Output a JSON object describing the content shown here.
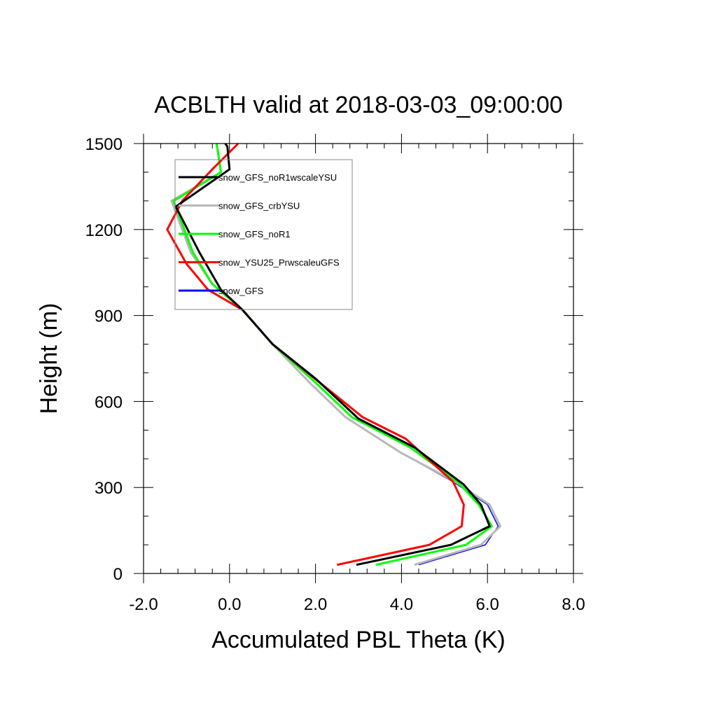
{
  "chart_data": {
    "type": "line",
    "title": "ACBLTH valid at 2018-03-03_09:00:00",
    "xlabel": "Accumulated PBL Theta (K)",
    "ylabel": "Height (m)",
    "xlim": [
      -2.0,
      8.0
    ],
    "ylim": [
      0,
      1500
    ],
    "x_ticks": [
      -2.0,
      0.0,
      2.0,
      4.0,
      6.0,
      8.0
    ],
    "x_tick_labels": [
      "-2.0",
      "0.0",
      "2.0",
      "4.0",
      "6.0",
      "8.0"
    ],
    "y_ticks": [
      0,
      300,
      600,
      900,
      1200,
      1500
    ],
    "y_tick_labels": [
      "0",
      "300",
      "600",
      "900",
      "1200",
      "1500"
    ],
    "legend_position": "top-left",
    "series": [
      {
        "name": "snow_GFS",
        "color": "#0000ff",
        "points": [
          [
            4.4,
            30
          ],
          [
            5.95,
            100
          ],
          [
            6.25,
            165
          ],
          [
            6.0,
            240
          ],
          [
            5.2,
            320
          ],
          [
            4.0,
            420
          ],
          [
            2.7,
            545
          ],
          [
            1.9,
            660
          ],
          [
            1.0,
            800
          ],
          [
            0.3,
            920
          ],
          [
            -0.4,
            1010
          ],
          [
            -0.9,
            1120
          ],
          [
            -1.3,
            1300
          ],
          [
            -0.2,
            1400
          ],
          [
            -0.3,
            1500
          ]
        ]
      },
      {
        "name": "snow_GFS_crbYSU",
        "color": "#b8b8b8",
        "points": [
          [
            4.3,
            30
          ],
          [
            5.85,
            100
          ],
          [
            6.3,
            165
          ],
          [
            6.05,
            240
          ],
          [
            5.25,
            320
          ],
          [
            4.0,
            420
          ],
          [
            2.7,
            545
          ],
          [
            1.9,
            660
          ],
          [
            1.0,
            800
          ],
          [
            0.3,
            920
          ],
          [
            -0.4,
            1010
          ],
          [
            -0.9,
            1120
          ],
          [
            -1.35,
            1300
          ],
          [
            -0.2,
            1400
          ],
          [
            -0.3,
            1500
          ]
        ]
      },
      {
        "name": "snow_GFS_noR1",
        "color": "#00ff00",
        "points": [
          [
            3.4,
            30
          ],
          [
            5.5,
            100
          ],
          [
            6.1,
            165
          ],
          [
            5.8,
            240
          ],
          [
            5.3,
            320
          ],
          [
            4.2,
            440
          ],
          [
            2.85,
            545
          ],
          [
            1.9,
            680
          ],
          [
            1.0,
            800
          ],
          [
            0.3,
            920
          ],
          [
            -0.4,
            1010
          ],
          [
            -0.85,
            1120
          ],
          [
            -1.3,
            1300
          ],
          [
            -0.2,
            1400
          ],
          [
            -0.3,
            1500
          ]
        ]
      },
      {
        "name": "snow_YSU25_PrwscaleuGFS",
        "color": "#ff0000",
        "points": [
          [
            2.5,
            30
          ],
          [
            4.65,
            100
          ],
          [
            5.4,
            165
          ],
          [
            5.45,
            240
          ],
          [
            5.2,
            320
          ],
          [
            4.1,
            470
          ],
          [
            3.1,
            545
          ],
          [
            1.9,
            690
          ],
          [
            1.0,
            800
          ],
          [
            0.3,
            920
          ],
          [
            -0.5,
            990
          ],
          [
            -1.0,
            1080
          ],
          [
            -1.45,
            1200
          ],
          [
            -1.1,
            1300
          ],
          [
            -0.4,
            1410
          ],
          [
            0.2,
            1500
          ]
        ]
      },
      {
        "name": "snow_GFS_noR1wscaleYSU",
        "color": "#000000",
        "points": [
          [
            2.95,
            30
          ],
          [
            5.15,
            100
          ],
          [
            6.05,
            165
          ],
          [
            5.85,
            240
          ],
          [
            5.45,
            310
          ],
          [
            4.3,
            440
          ],
          [
            3.0,
            540
          ],
          [
            2.0,
            680
          ],
          [
            1.0,
            800
          ],
          [
            0.3,
            920
          ],
          [
            -0.2,
            990
          ],
          [
            -0.7,
            1120
          ],
          [
            -1.25,
            1280
          ],
          [
            0.0,
            1410
          ],
          [
            -0.05,
            1490
          ],
          [
            -0.1,
            1500
          ]
        ]
      }
    ],
    "legend": [
      {
        "name": "snow_GFS_noR1wscaleYSU",
        "color": "#000000"
      },
      {
        "name": "snow_GFS_crbYSU",
        "color": "#b8b8b8"
      },
      {
        "name": "snow_GFS_noR1",
        "color": "#00ff00"
      },
      {
        "name": "snow_YSU25_PrwscaleuGFS",
        "color": "#ff0000"
      },
      {
        "name": "snow_GFS",
        "color": "#0000ff"
      }
    ]
  }
}
